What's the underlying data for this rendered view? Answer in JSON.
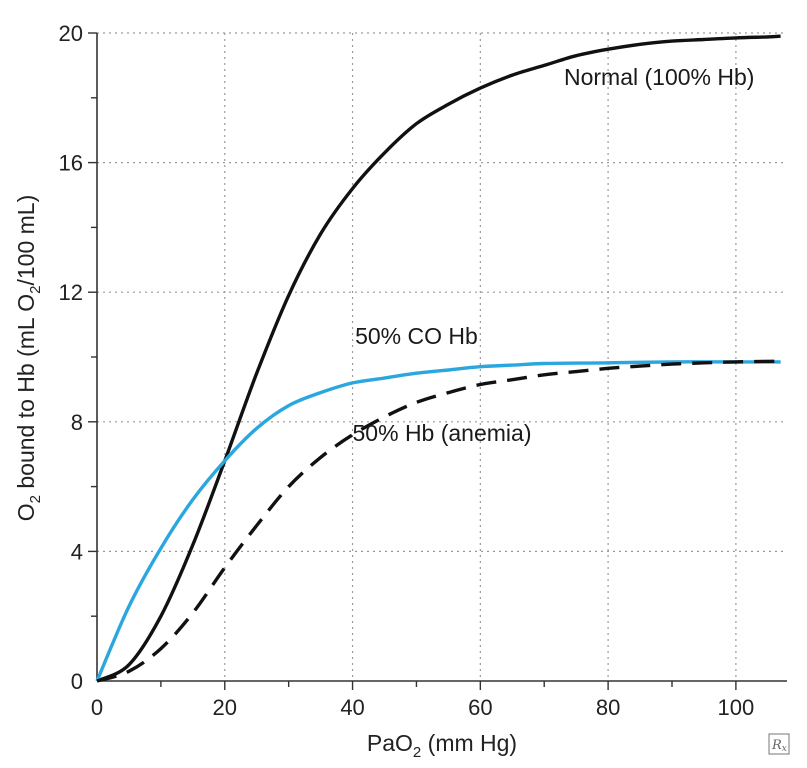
{
  "chart_data": {
    "type": "line",
    "title": "",
    "xlabel": {
      "main": "PaO",
      "sub": "2",
      "rest": " (mm Hg)"
    },
    "ylabel": {
      "pre": "O",
      "sub1": "2",
      "mid": " bound to Hb (mL O",
      "sub2": "2",
      "post": "/100 mL)"
    },
    "xlim": [
      0,
      108
    ],
    "ylim": [
      0,
      20
    ],
    "xticks": [
      0,
      20,
      40,
      60,
      80,
      100
    ],
    "yticks": [
      0,
      4,
      8,
      12,
      16,
      20
    ],
    "grid_x": [
      20,
      40,
      60,
      80,
      100
    ],
    "grid_y": [
      4,
      8,
      12,
      16,
      20
    ],
    "series": [
      {
        "name": "Normal (100% Hb)",
        "color": "#111111",
        "style": "solid",
        "x": [
          0,
          5,
          10,
          15,
          20,
          25,
          30,
          35,
          40,
          45,
          50,
          55,
          60,
          65,
          70,
          75,
          80,
          85,
          90,
          95,
          100,
          105,
          107
        ],
        "y": [
          0,
          0.5,
          2.0,
          4.2,
          6.8,
          9.5,
          11.9,
          13.8,
          15.2,
          16.3,
          17.2,
          17.8,
          18.3,
          18.7,
          19.0,
          19.3,
          19.5,
          19.65,
          19.75,
          19.8,
          19.85,
          19.88,
          19.9
        ]
      },
      {
        "name": "50% CO Hb",
        "color": "#2aa7de",
        "style": "solid",
        "x": [
          0,
          5,
          10,
          15,
          20,
          25,
          30,
          35,
          40,
          45,
          50,
          55,
          60,
          65,
          70,
          80,
          90,
          100,
          107
        ],
        "y": [
          0,
          2.3,
          4.1,
          5.6,
          6.8,
          7.8,
          8.5,
          8.9,
          9.2,
          9.35,
          9.5,
          9.6,
          9.7,
          9.75,
          9.8,
          9.82,
          9.85,
          9.85,
          9.85
        ]
      },
      {
        "name": "50% Hb (anemia)",
        "color": "#111111",
        "style": "dashed",
        "x": [
          0,
          5,
          10,
          15,
          20,
          25,
          30,
          35,
          40,
          45,
          50,
          55,
          60,
          65,
          70,
          75,
          80,
          85,
          90,
          95,
          100,
          107
        ],
        "y": [
          0,
          0.3,
          1.0,
          2.1,
          3.5,
          4.8,
          6.0,
          6.9,
          7.6,
          8.15,
          8.6,
          8.9,
          9.15,
          9.3,
          9.45,
          9.55,
          9.65,
          9.72,
          9.78,
          9.82,
          9.85,
          9.87
        ]
      }
    ],
    "annotations": [
      {
        "text": "Normal (100% Hb)",
        "x": 88,
        "y": 18.4
      },
      {
        "text": "50% CO Hb",
        "x": 50,
        "y": 10.4
      },
      {
        "text": "50% Hb (anemia)",
        "x": 54,
        "y": 7.4
      }
    ]
  },
  "logo": {
    "text": "R",
    "sub": "x"
  }
}
